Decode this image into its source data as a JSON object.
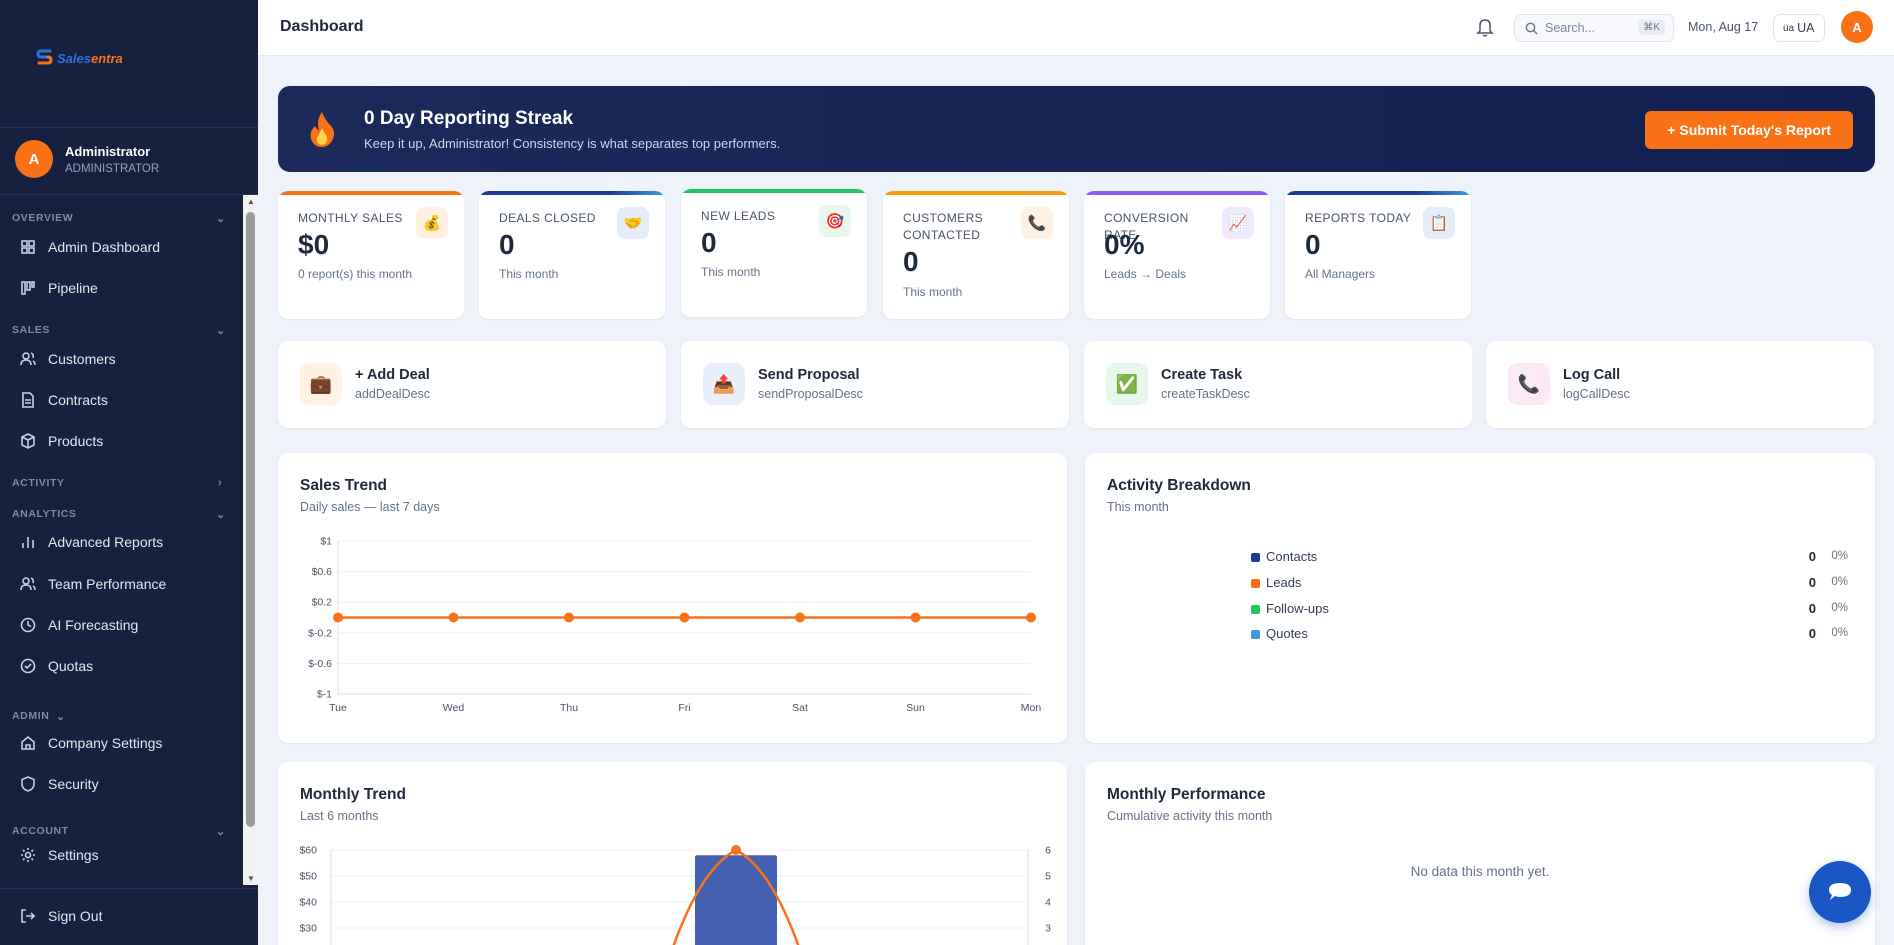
{
  "brand": {
    "logo_sales": "Sales",
    "logo_entra": "entra",
    "accent": "#f97316",
    "navy": "#15213f"
  },
  "user": {
    "initial": "A",
    "name": "Administrator",
    "role": "ADMINISTRATOR"
  },
  "sidebar": {
    "sections": [
      {
        "label": "OVERVIEW",
        "items": [
          {
            "label": "Admin Dashboard",
            "icon": "grid-icon"
          },
          {
            "label": "Pipeline",
            "icon": "pipeline-icon"
          }
        ]
      },
      {
        "label": "SALES",
        "items": [
          {
            "label": "Customers",
            "icon": "users-icon"
          },
          {
            "label": "Contracts",
            "icon": "document-icon"
          },
          {
            "label": "Products",
            "icon": "box-icon"
          }
        ]
      },
      {
        "label": "ACTIVITY",
        "items": []
      },
      {
        "label": "ANALYTICS",
        "items": [
          {
            "label": "Advanced Reports",
            "icon": "bar-chart-icon"
          },
          {
            "label": "Team Performance",
            "icon": "users-icon"
          },
          {
            "label": "AI Forecasting",
            "icon": "clock-icon"
          },
          {
            "label": "Quotas",
            "icon": "check-circle-icon"
          }
        ]
      },
      {
        "label": "ADMIN",
        "items": [
          {
            "label": "Company Settings",
            "icon": "home-icon"
          },
          {
            "label": "Security",
            "icon": "shield-icon"
          }
        ]
      },
      {
        "label": "ACCOUNT",
        "items": [
          {
            "label": "Settings",
            "icon": "gear-icon"
          }
        ]
      }
    ],
    "sign_out": "Sign Out"
  },
  "header": {
    "title": "Dashboard",
    "search_placeholder": "Search...",
    "search_shortcut": "⌘K",
    "date": "Mon, Aug 17",
    "language": "UA",
    "language_flag": "ua"
  },
  "streak": {
    "title": "0 Day Reporting Streak",
    "subtitle": "Keep it up, Administrator! Consistency is what separates top performers.",
    "button": "+ Submit Today's Report"
  },
  "stats": [
    {
      "label": "MONTHLY SALES",
      "value": "$0",
      "sub": "0 report(s) this month",
      "color": "#f97316",
      "icon": "money-bag-icon"
    },
    {
      "label": "DEALS CLOSED",
      "value": "0",
      "sub": "This month",
      "color": "#1f3a93",
      "icon": "handshake-icon"
    },
    {
      "label": "NEW LEADS",
      "value": "0",
      "sub": "This month",
      "color": "#22c55e",
      "icon": "target-icon"
    },
    {
      "label": "CUSTOMERS CONTACTED",
      "value": "0",
      "sub": "This month",
      "color": "#f59e0b",
      "icon": "phone-icon"
    },
    {
      "label": "CONVERSION RATE",
      "value": "0%",
      "sub": "Leads → Deals",
      "color": "#8b5cf6",
      "icon": "trend-chart-icon"
    },
    {
      "label": "REPORTS TODAY",
      "value": "0",
      "sub": "All Managers",
      "color": "#1f3a93",
      "icon": "clipboard-icon"
    }
  ],
  "quick_actions": [
    {
      "title": "+ Add Deal",
      "desc": "addDealDesc",
      "icon": "briefcase-icon"
    },
    {
      "title": "Send Proposal",
      "desc": "sendProposalDesc",
      "icon": "outbox-icon"
    },
    {
      "title": "Create Task",
      "desc": "createTaskDesc",
      "icon": "checkbox-icon"
    },
    {
      "title": "Log Call",
      "desc": "logCallDesc",
      "icon": "phone-icon"
    }
  ],
  "sales_trend": {
    "title": "Sales Trend",
    "subtitle": "Daily sales — last 7 days"
  },
  "activity": {
    "title": "Activity Breakdown",
    "subtitle": "This month",
    "rows": [
      {
        "name": "Contacts",
        "value": "0",
        "pct": "0%",
        "color": "#1f3a93"
      },
      {
        "name": "Leads",
        "value": "0",
        "pct": "0%",
        "color": "#f97316"
      },
      {
        "name": "Follow-ups",
        "value": "0",
        "pct": "0%",
        "color": "#22c55e"
      },
      {
        "name": "Quotes",
        "value": "0",
        "pct": "0%",
        "color": "#3b9be0"
      }
    ]
  },
  "monthly_trend": {
    "title": "Monthly Trend",
    "subtitle": "Last 6 months"
  },
  "monthly_performance": {
    "title": "Monthly Performance",
    "subtitle": "Cumulative activity this month",
    "empty": "No data this month yet."
  },
  "chart_data": [
    {
      "type": "line",
      "x": [
        "Tue",
        "Wed",
        "Thu",
        "Fri",
        "Sat",
        "Sun",
        "Mon"
      ],
      "series": [
        {
          "values": [
            0,
            0,
            0,
            0,
            0,
            0,
            0
          ],
          "color": "#f97316"
        }
      ],
      "ytick_labels": [
        "$1",
        "$0.6",
        "$0.2",
        "$-0.2",
        "$-0.6",
        "$-1"
      ],
      "ylim": [
        -1,
        1
      ],
      "grid": true
    },
    {
      "type": "bar",
      "visible_left_ticks": [
        "$60",
        "$50",
        "$40",
        "$30"
      ],
      "visible_right_ticks": [
        "6",
        "5",
        "4",
        "3"
      ],
      "bar": {
        "value": 58,
        "color": "#4361b0"
      },
      "line": {
        "peak": 6,
        "color": "#f97316"
      },
      "note": "partially visible, cut off at bottom"
    }
  ]
}
